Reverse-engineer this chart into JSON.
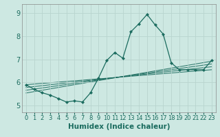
{
  "xlabel": "Humidex (Indice chaleur)",
  "bg_color": "#cde8e2",
  "grid_color": "#b8d4ce",
  "line_color": "#1a6b5e",
  "xlim": [
    -0.5,
    23.5
  ],
  "ylim": [
    4.7,
    9.4
  ],
  "yticks": [
    5,
    6,
    7,
    8,
    9
  ],
  "xtick_labels": [
    "0",
    "1",
    "2",
    "3",
    "4",
    "5",
    "6",
    "7",
    "8",
    "9",
    "10",
    "11",
    "12",
    "13",
    "14",
    "15",
    "16",
    "17",
    "18",
    "19",
    "20",
    "21",
    "22",
    "23"
  ],
  "main_line_x": [
    0,
    1,
    2,
    3,
    4,
    5,
    6,
    7,
    8,
    9,
    10,
    11,
    12,
    13,
    14,
    15,
    16,
    17,
    18,
    19,
    20,
    21,
    22,
    23
  ],
  "main_line_y": [
    5.9,
    5.7,
    5.55,
    5.45,
    5.3,
    5.15,
    5.2,
    5.15,
    5.55,
    6.2,
    6.95,
    7.3,
    7.05,
    8.2,
    8.55,
    8.95,
    8.5,
    8.1,
    6.85,
    6.55,
    6.55,
    6.55,
    6.55,
    6.95
  ],
  "reg_lines": [
    {
      "x": [
        0,
        23
      ],
      "y": [
        5.9,
        6.55
      ]
    },
    {
      "x": [
        0,
        23
      ],
      "y": [
        5.78,
        6.68
      ]
    },
    {
      "x": [
        0,
        23
      ],
      "y": [
        5.66,
        6.8
      ]
    },
    {
      "x": [
        0,
        23
      ],
      "y": [
        5.54,
        6.92
      ]
    }
  ],
  "xlabel_color": "#1a6b5e",
  "xlabel_fontsize": 7.5,
  "tick_fontsize": 6.0,
  "ytick_fontsize": 7.0
}
